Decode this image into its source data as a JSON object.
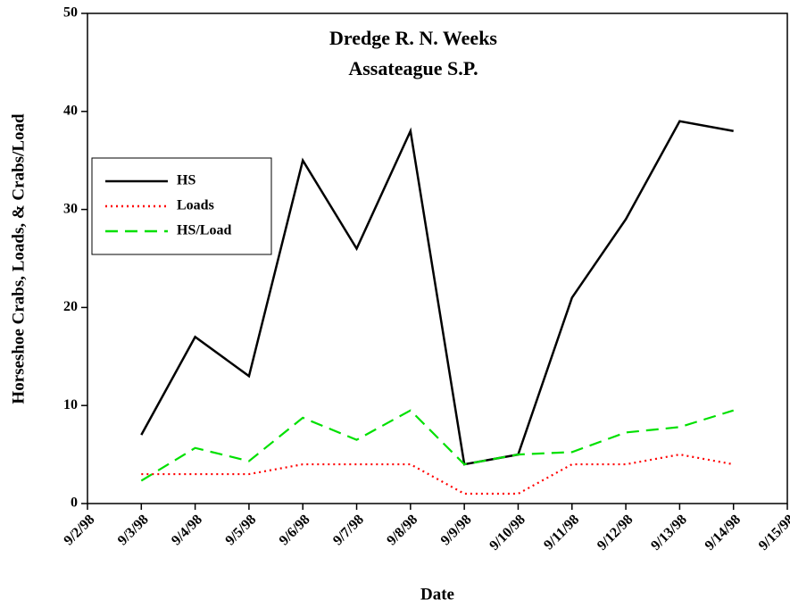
{
  "chart_data": {
    "type": "line",
    "title": [
      "Dredge R. N. Weeks",
      "Assateague S.P."
    ],
    "xlabel": "Date",
    "ylabel": "Horseshoe Crabs, Loads, & Crabs/Load",
    "categories": [
      "9/2/98",
      "9/3/98",
      "9/4/98",
      "9/5/98",
      "9/6/98",
      "9/7/98",
      "9/8/98",
      "9/9/98",
      "9/10/98",
      "9/11/98",
      "9/12/98",
      "9/13/98",
      "9/14/98",
      "9/15/98"
    ],
    "series": [
      {
        "name": "HS",
        "color": "#000000",
        "dash": "solid",
        "values": [
          null,
          7,
          17,
          13,
          35,
          26,
          38,
          4,
          5,
          21,
          29,
          39,
          38,
          null
        ]
      },
      {
        "name": "Loads",
        "color": "#ff0000",
        "dash": "dotted",
        "values": [
          null,
          3,
          3,
          3,
          4,
          4,
          4,
          1,
          1,
          4,
          4,
          5,
          4,
          null
        ]
      },
      {
        "name": "HS/Load",
        "color": "#00e000",
        "dash": "dashed",
        "values": [
          null,
          2.33,
          5.67,
          4.33,
          8.75,
          6.5,
          9.5,
          4,
          5,
          5.25,
          7.25,
          7.8,
          9.5,
          null
        ]
      }
    ],
    "ylim": [
      0,
      50
    ],
    "yticks": [
      0,
      10,
      20,
      30,
      40,
      50
    ],
    "legend": "upper left"
  }
}
